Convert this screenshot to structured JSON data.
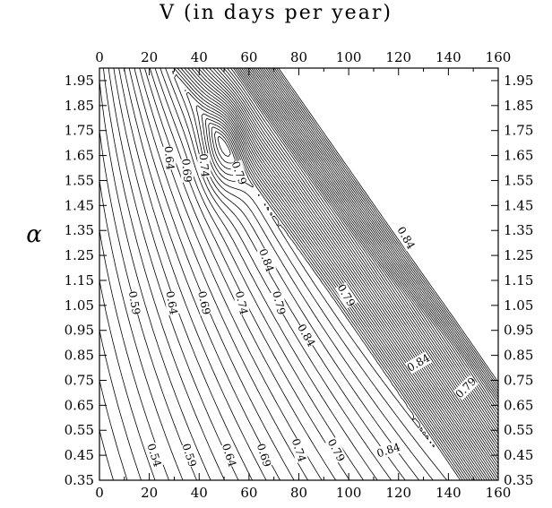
{
  "chart_data": {
    "type": "contour",
    "title": "V (in days per year)",
    "ylabel": "α",
    "xlabel": "",
    "xlim": [
      0,
      160
    ],
    "ylim": [
      0.35,
      2.0
    ],
    "x_ticks": [
      "0",
      "20",
      "40",
      "60",
      "80",
      "100",
      "120",
      "140",
      "160"
    ],
    "y_ticks": [
      "0.35",
      "0.45",
      "0.55",
      "0.65",
      "0.75",
      "0.85",
      "0.95",
      "1.05",
      "1.15",
      "1.25",
      "1.35",
      "1.45",
      "1.55",
      "1.65",
      "1.75",
      "1.85",
      "1.95"
    ],
    "contour_levels": [
      0.54,
      0.59,
      0.64,
      0.69,
      0.74,
      0.79,
      0.84
    ],
    "contour_labels": [
      {
        "text": "0.54",
        "x": 22,
        "y": 0.45,
        "rotation": 72
      },
      {
        "text": "0.59",
        "x": 36,
        "y": 0.45,
        "rotation": 72
      },
      {
        "text": "0.64",
        "x": 52,
        "y": 0.45,
        "rotation": 72
      },
      {
        "text": "0.69",
        "x": 66,
        "y": 0.45,
        "rotation": 72
      },
      {
        "text": "0.74",
        "x": 80,
        "y": 0.47,
        "rotation": 72
      },
      {
        "text": "0.79",
        "x": 95,
        "y": 0.47,
        "rotation": 62
      },
      {
        "text": "0.84",
        "x": 116,
        "y": 0.47,
        "rotation": -18
      },
      {
        "text": "0.59",
        "x": 14,
        "y": 1.06,
        "rotation": 80
      },
      {
        "text": "0.64",
        "x": 29,
        "y": 1.06,
        "rotation": 80
      },
      {
        "text": "0.69",
        "x": 42,
        "y": 1.06,
        "rotation": 78
      },
      {
        "text": "0.74",
        "x": 57,
        "y": 1.06,
        "rotation": 78
      },
      {
        "text": "0.79",
        "x": 72,
        "y": 1.06,
        "rotation": 76
      },
      {
        "text": "0.84",
        "x": 83,
        "y": 0.93,
        "rotation": 60
      },
      {
        "text": "0.79",
        "x": 99,
        "y": 1.09,
        "rotation": 60
      },
      {
        "text": "0.84",
        "x": 128,
        "y": 0.82,
        "rotation": -30
      },
      {
        "text": "0.79",
        "x": 147,
        "y": 0.72,
        "rotation": -45
      },
      {
        "text": "0.64",
        "x": 28,
        "y": 1.64,
        "rotation": 85
      },
      {
        "text": "0.69",
        "x": 35,
        "y": 1.59,
        "rotation": 85
      },
      {
        "text": "0.74",
        "x": 42,
        "y": 1.61,
        "rotation": 85
      },
      {
        "text": "0.79",
        "x": 56,
        "y": 1.58,
        "rotation": 70
      },
      {
        "text": "0.84",
        "x": 67,
        "y": 1.23,
        "rotation": 70
      },
      {
        "text": "0.84",
        "x": 123,
        "y": 1.32,
        "rotation": 60
      }
    ],
    "grid": false
  }
}
